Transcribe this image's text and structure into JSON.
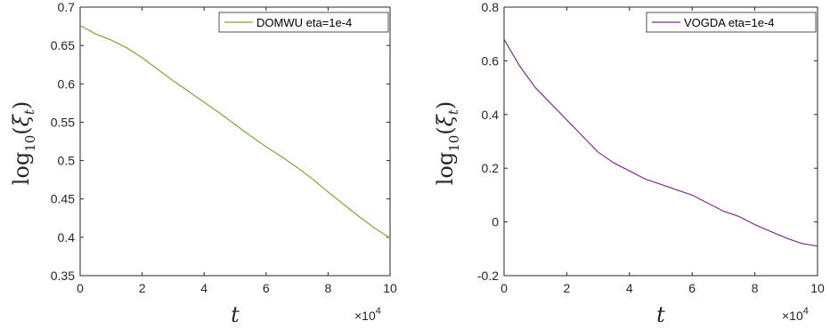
{
  "chart_data": [
    {
      "type": "line",
      "xlabel": "t",
      "ylabel": "log10(ξt)",
      "x_exponent": "×10^4",
      "xlim": [
        0,
        10
      ],
      "ylim": [
        0.35,
        0.7
      ],
      "xticks": [
        "0",
        "2",
        "4",
        "6",
        "8",
        "10"
      ],
      "yticks": [
        "0.35",
        "0.4",
        "0.45",
        "0.5",
        "0.55",
        "0.6",
        "0.65",
        "0.7"
      ],
      "series": [
        {
          "name": "DOMWU eta=1e-4",
          "color": "#77AC30",
          "x": [
            0,
            0.5,
            1,
            1.5,
            2,
            2.5,
            3,
            3.5,
            4,
            4.5,
            5,
            5.5,
            6,
            6.5,
            7,
            7.5,
            8,
            8.5,
            9,
            9.5,
            10
          ],
          "y": [
            0.676,
            0.665,
            0.657,
            0.647,
            0.634,
            0.619,
            0.604,
            0.59,
            0.576,
            0.562,
            0.547,
            0.532,
            0.518,
            0.505,
            0.491,
            0.476,
            0.459,
            0.443,
            0.427,
            0.412,
            0.399
          ]
        }
      ],
      "legend_position": "top-right",
      "grid": false
    },
    {
      "type": "line",
      "xlabel": "t",
      "ylabel": "log10(ξt)",
      "x_exponent": "×10^4",
      "xlim": [
        0,
        10
      ],
      "ylim": [
        -0.2,
        0.8
      ],
      "xticks": [
        "0",
        "2",
        "4",
        "6",
        "8",
        "10"
      ],
      "yticks": [
        "-0.2",
        "0",
        "0.2",
        "0.4",
        "0.6",
        "0.8"
      ],
      "series": [
        {
          "name": "VOGDA eta=1e-4",
          "color": "#7E2F8E",
          "x": [
            0,
            0.5,
            1,
            1.5,
            2,
            2.5,
            3,
            3.5,
            4,
            4.5,
            5,
            5.5,
            6,
            6.5,
            7,
            7.5,
            8,
            8.5,
            9,
            9.5,
            10
          ],
          "y": [
            0.68,
            0.58,
            0.5,
            0.44,
            0.38,
            0.32,
            0.26,
            0.22,
            0.19,
            0.16,
            0.14,
            0.12,
            0.1,
            0.07,
            0.04,
            0.02,
            -0.01,
            -0.035,
            -0.06,
            -0.08,
            -0.09
          ]
        }
      ],
      "legend_position": "top-right",
      "grid": false
    }
  ]
}
